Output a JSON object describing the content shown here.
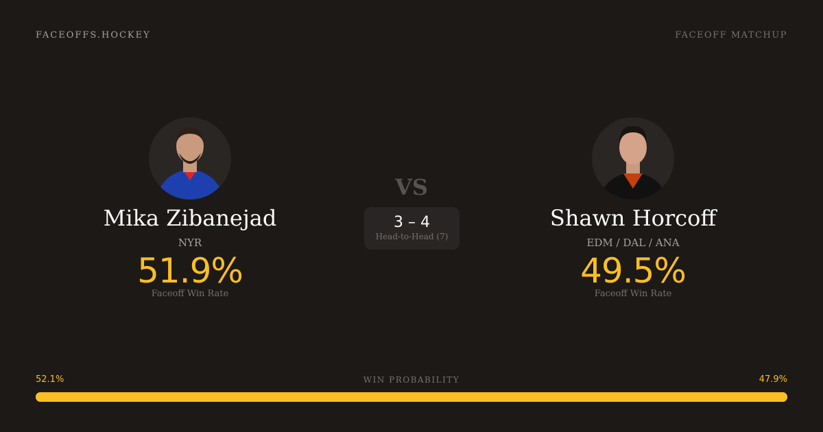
{
  "header": {
    "brand": "FACEOFFS.HOCKEY",
    "section": "FACEOFF MATCHUP"
  },
  "players": [
    {
      "name": "Mika Zibanejad",
      "team": "NYR",
      "win_rate": "51.9%",
      "win_rate_label": "Faceoff Win Rate",
      "jersey_color": "#1e40af"
    },
    {
      "name": "Shawn Horcoff",
      "team": "EDM / DAL / ANA",
      "win_rate": "49.5%",
      "win_rate_label": "Faceoff Win Rate",
      "jersey_color": "#111111"
    }
  ],
  "vs": "VS",
  "head_to_head": {
    "score": "3 – 4",
    "label": "Head-to-Head (7)"
  },
  "win_probability": {
    "title": "WIN PROBABILITY",
    "left": "52.1%",
    "right": "47.9%",
    "left_value": 52.1,
    "right_value": 47.9,
    "color": "#fbbf24"
  }
}
